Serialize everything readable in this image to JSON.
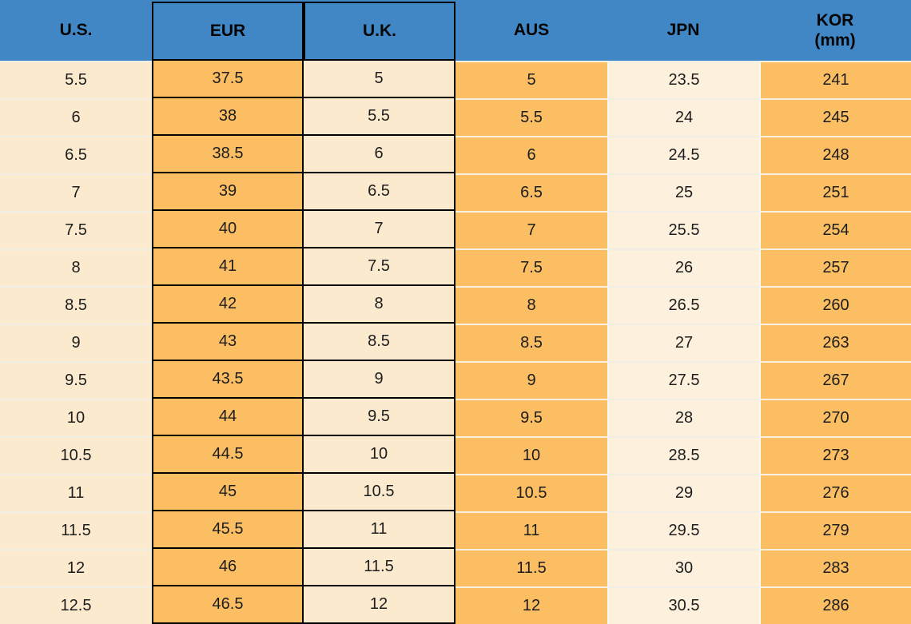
{
  "chart_data": {
    "type": "table",
    "columns": [
      {
        "id": "us",
        "label": "U.S."
      },
      {
        "id": "eur",
        "label": "EUR"
      },
      {
        "id": "uk",
        "label": "U.K."
      },
      {
        "id": "aus",
        "label": "AUS"
      },
      {
        "id": "jpn",
        "label": "JPN"
      },
      {
        "id": "kor",
        "label": "KOR",
        "sublabel": "(mm)"
      }
    ],
    "rows": [
      [
        "5.5",
        "37.5",
        "5",
        "5",
        "23.5",
        "241"
      ],
      [
        "6",
        "38",
        "5.5",
        "5.5",
        "24",
        "245"
      ],
      [
        "6.5",
        "38.5",
        "6",
        "6",
        "24.5",
        "248"
      ],
      [
        "7",
        "39",
        "6.5",
        "6.5",
        "25",
        "251"
      ],
      [
        "7.5",
        "40",
        "7",
        "7",
        "25.5",
        "254"
      ],
      [
        "8",
        "41",
        "7.5",
        "7.5",
        "26",
        "257"
      ],
      [
        "8.5",
        "42",
        "8",
        "8",
        "26.5",
        "260"
      ],
      [
        "9",
        "43",
        "8.5",
        "8.5",
        "27",
        "263"
      ],
      [
        "9.5",
        "43.5",
        "9",
        "9",
        "27.5",
        "267"
      ],
      [
        "10",
        "44",
        "9.5",
        "9.5",
        "28",
        "270"
      ],
      [
        "10.5",
        "44.5",
        "10",
        "10",
        "28.5",
        "273"
      ],
      [
        "11",
        "45",
        "10.5",
        "10.5",
        "29",
        "276"
      ],
      [
        "11.5",
        "45.5",
        "11",
        "11",
        "29.5",
        "279"
      ],
      [
        "12",
        "46",
        "11.5",
        "11.5",
        "30",
        "283"
      ],
      [
        "12.5",
        "46.5",
        "12",
        "12",
        "30.5",
        "286"
      ]
    ]
  },
  "colors": {
    "header_blue": "#4187C5",
    "orange": "#FBBE63",
    "cream": "#FBEACE",
    "cream_light": "#FDF1DD",
    "border_black": "#000000",
    "text": "#1D1D1D"
  }
}
